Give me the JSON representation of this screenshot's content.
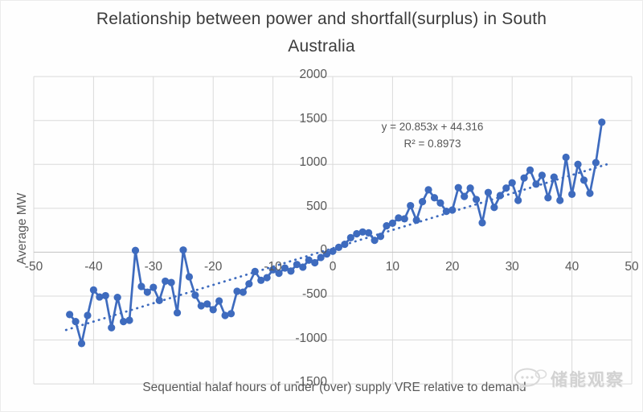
{
  "title": {
    "line1": "Relationship between power and shortfall(surplus) in South",
    "line2": "Australia"
  },
  "watermark": {
    "text": "储能观察",
    "icon": "chat-bubbles-logo"
  },
  "chart_data": {
    "type": "line",
    "title": "Relationship between power and shortfall(surplus) in South Australia",
    "xlabel": "Sequential halaf hours of under (over) supply VRE relative to demand",
    "ylabel": "Average MW",
    "xlim": [
      -50,
      50
    ],
    "ylim": [
      -1500,
      2000
    ],
    "grid": true,
    "x_ticks": [
      -50,
      -40,
      -30,
      -20,
      -10,
      0,
      10,
      20,
      30,
      40,
      50
    ],
    "y_ticks": [
      2000,
      1500,
      1000,
      500,
      0,
      -500,
      -1000,
      -1500
    ],
    "x": [
      -44,
      -43,
      -42,
      -41,
      -40,
      -39,
      -38,
      -37,
      -36,
      -35,
      -34,
      -33,
      -32,
      -31,
      -30,
      -29,
      -28,
      -27,
      -26,
      -25,
      -24,
      -23,
      -22,
      -21,
      -20,
      -19,
      -18,
      -17,
      -16,
      -15,
      -14,
      -13,
      -12,
      -11,
      -10,
      -9,
      -8,
      -7,
      -6,
      -5,
      -4,
      -3,
      -2,
      -1,
      0,
      1,
      2,
      3,
      4,
      5,
      6,
      7,
      8,
      9,
      10,
      11,
      12,
      13,
      14,
      15,
      16,
      17,
      18,
      19,
      20,
      21,
      22,
      23,
      24,
      25,
      26,
      27,
      28,
      29,
      30,
      31,
      32,
      33,
      34,
      35,
      36,
      37,
      38,
      39,
      40,
      41,
      42,
      43,
      44,
      45
    ],
    "y": [
      -710,
      -790,
      -1040,
      -720,
      -430,
      -510,
      -495,
      -860,
      -515,
      -790,
      -775,
      20,
      -390,
      -455,
      -400,
      -550,
      -330,
      -345,
      -690,
      25,
      -280,
      -490,
      -610,
      -590,
      -655,
      -555,
      -720,
      -700,
      -445,
      -455,
      -360,
      -220,
      -320,
      -290,
      -200,
      -240,
      -180,
      -215,
      -140,
      -170,
      -90,
      -120,
      -60,
      -20,
      10,
      55,
      90,
      165,
      210,
      230,
      220,
      135,
      180,
      300,
      330,
      390,
      380,
      530,
      365,
      575,
      710,
      620,
      560,
      465,
      480,
      735,
      635,
      730,
      600,
      335,
      680,
      510,
      645,
      730,
      790,
      590,
      845,
      935,
      775,
      875,
      620,
      855,
      590,
      1080,
      660,
      1000,
      820,
      670,
      1020,
      1480
    ],
    "trendline": {
      "equation": "y = 20.853x + 44.316",
      "r_squared": "R² = 0.8973",
      "slope": 20.853,
      "intercept": 44.316,
      "style": "dotted"
    },
    "colors": {
      "series": "#3e6bbe",
      "trendline": "#3e6bbe",
      "gridline": "#dadada",
      "axis_line": "#c3c3c3",
      "text": "#595959",
      "title_text": "#3b3b3b"
    },
    "legend": "none"
  }
}
